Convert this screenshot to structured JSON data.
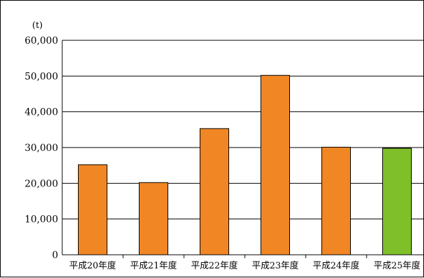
{
  "chart_data": {
    "type": "bar",
    "unit_label": "(t)",
    "categories": [
      "平成20年度",
      "平成21年度",
      "平成22年度",
      "平成23年度",
      "平成24年度",
      "平成25年度"
    ],
    "values": [
      25200,
      20200,
      35300,
      50200,
      30100,
      29800
    ],
    "bar_colors": [
      "#f08624",
      "#f08624",
      "#f08624",
      "#f08624",
      "#f08624",
      "#7fbf2a"
    ],
    "ylim": [
      0,
      60000
    ],
    "yticks": [
      0,
      10000,
      20000,
      30000,
      40000,
      50000,
      60000
    ],
    "ytick_labels": [
      "0",
      "10,000",
      "20,000",
      "30,000",
      "40,000",
      "50,000",
      "60,000"
    ],
    "grid": true,
    "legend": "none"
  }
}
